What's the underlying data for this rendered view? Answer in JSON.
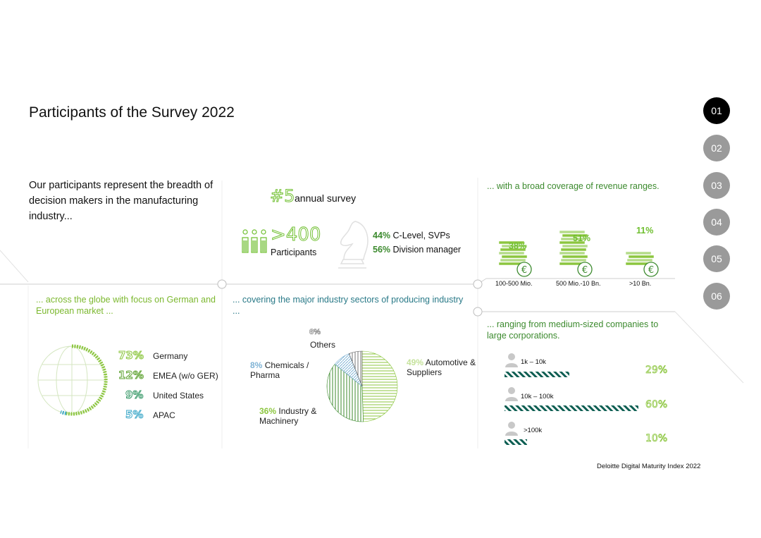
{
  "title": "Participants of the Survey 2022",
  "nav": [
    "01",
    "02",
    "03",
    "04",
    "05",
    "06"
  ],
  "intro": "Our participants represent the breadth of decision makers in the manufacturing industry...",
  "survey": {
    "annual_num": "#5",
    "annual_label": "annual survey",
    "participants_num": ">400",
    "participants_label": "Participants",
    "clevel_pct": "44%",
    "clevel_label": "C-Level, SVPs",
    "division_pct": "56%",
    "division_label": "Division manager"
  },
  "revenue": {
    "heading": "... with a broad coverage of revenue ranges.",
    "items": [
      {
        "pct": "38%",
        "label": "100-500 Mio."
      },
      {
        "pct": "51%",
        "label": "500 Mio.-10 Bn."
      },
      {
        "pct": "11%",
        "label": ">10 Bn."
      }
    ],
    "currency_symbol": "€"
  },
  "globe": {
    "heading": "... across the globe with focus on German and European market ...",
    "items": [
      {
        "pct": "73%",
        "label": "Germany",
        "color": "#8cc63f"
      },
      {
        "pct": "12%",
        "label": "EMEA (w/o GER)",
        "color": "#5aa02c"
      },
      {
        "pct": "9%",
        "label": "United States",
        "color": "#3a9a6a"
      },
      {
        "pct": "5%",
        "label": "APAC",
        "color": "#3fa9c9"
      }
    ]
  },
  "sectors": {
    "heading": "... covering the major industry sectors of producing industry ...",
    "slices": [
      {
        "pct": "49%",
        "label": "Automotive & Suppliers",
        "value": 49,
        "color": "#8cc63f"
      },
      {
        "pct": "36%",
        "label": "Industry & Machinery",
        "value": 36,
        "color": "#3c8a2e"
      },
      {
        "pct": "8%",
        "label": "Chemicals / Pharma",
        "value": 8,
        "color": "#7fb3d5"
      },
      {
        "pct": "6%",
        "label": "Others",
        "value": 6,
        "color": "#555555"
      }
    ]
  },
  "size": {
    "heading": "... ranging from medium-sized companies to large corporations.",
    "items": [
      {
        "label": "1k – 10k",
        "pct": "29%",
        "value": 29
      },
      {
        "label": "10k – 100k",
        "pct": "60%",
        "value": 60
      },
      {
        "label": ">100k",
        "pct": "10%",
        "value": 10
      }
    ]
  },
  "footer": "Deloitte Digital Maturity Index 2022"
}
